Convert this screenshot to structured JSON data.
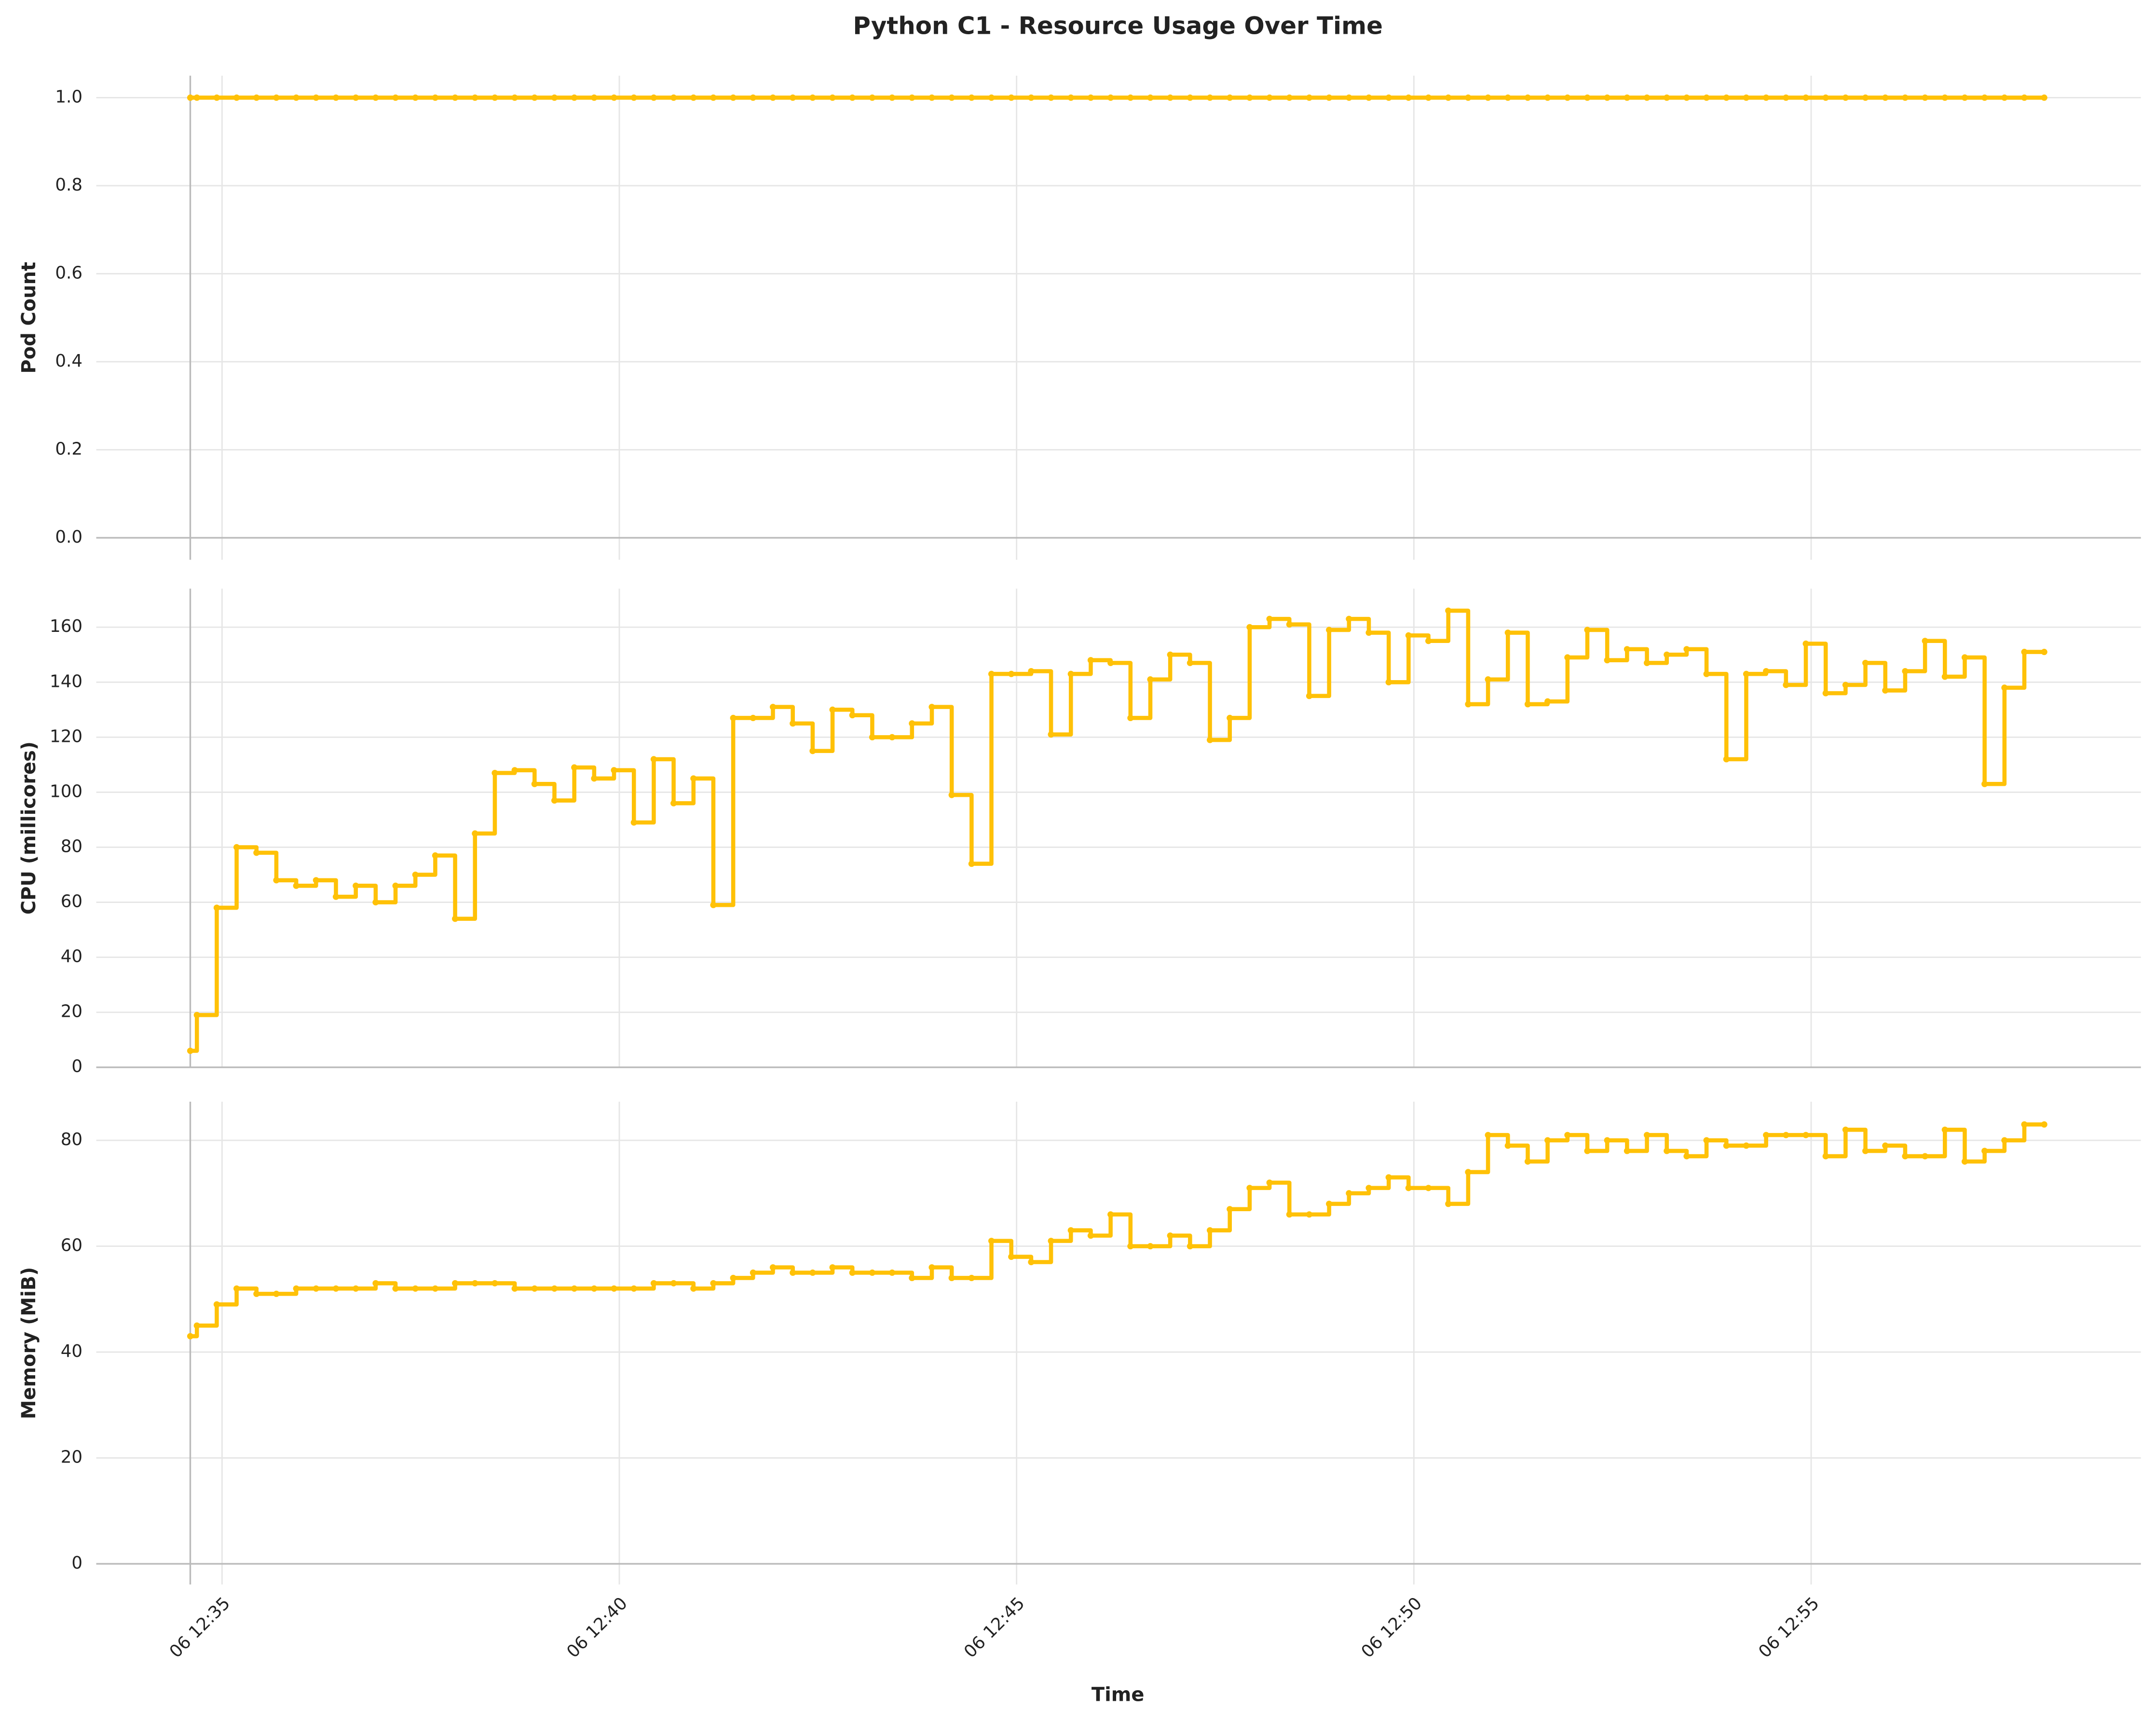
{
  "title": "Python C1 - Resource Usage Over Time",
  "x_label": "Time",
  "x": [
    "06 12:34:36",
    "06 12:34:41",
    "06 12:34:56",
    "06 12:35:11",
    "06 12:35:26",
    "06 12:35:41",
    "06 12:35:56",
    "06 12:36:11",
    "06 12:36:26",
    "06 12:36:41",
    "06 12:36:56",
    "06 12:37:11",
    "06 12:37:26",
    "06 12:37:41",
    "06 12:37:56",
    "06 12:38:11",
    "06 12:38:26",
    "06 12:38:41",
    "06 12:38:56",
    "06 12:39:11",
    "06 12:39:26",
    "06 12:39:41",
    "06 12:39:56",
    "06 12:40:11",
    "06 12:40:26",
    "06 12:40:41",
    "06 12:40:56",
    "06 12:41:11",
    "06 12:41:26",
    "06 12:41:41",
    "06 12:41:56",
    "06 12:42:11",
    "06 12:42:26",
    "06 12:42:41",
    "06 12:42:56",
    "06 12:43:11",
    "06 12:43:26",
    "06 12:43:41",
    "06 12:43:56",
    "06 12:44:11",
    "06 12:44:26",
    "06 12:44:41",
    "06 12:44:56",
    "06 12:45:11",
    "06 12:45:26",
    "06 12:45:41",
    "06 12:45:56",
    "06 12:46:11",
    "06 12:46:26",
    "06 12:46:41",
    "06 12:46:56",
    "06 12:47:11",
    "06 12:47:26",
    "06 12:47:41",
    "06 12:47:56",
    "06 12:48:11",
    "06 12:48:26",
    "06 12:48:41",
    "06 12:48:56",
    "06 12:49:11",
    "06 12:49:26",
    "06 12:49:41",
    "06 12:49:56",
    "06 12:50:11",
    "06 12:50:26",
    "06 12:50:41",
    "06 12:50:56",
    "06 12:51:11",
    "06 12:51:26",
    "06 12:51:41",
    "06 12:51:56",
    "06 12:52:11",
    "06 12:52:26",
    "06 12:52:41",
    "06 12:52:56",
    "06 12:53:11",
    "06 12:53:26",
    "06 12:53:41",
    "06 12:53:56",
    "06 12:54:11",
    "06 12:54:26",
    "06 12:54:41",
    "06 12:54:56",
    "06 12:55:11",
    "06 12:55:26",
    "06 12:55:41",
    "06 12:55:56",
    "06 12:56:11",
    "06 12:56:26",
    "06 12:56:41",
    "06 12:56:56",
    "06 12:57:11",
    "06 12:57:26",
    "06 12:57:41",
    "06 12:57:56"
  ],
  "xlim": [
    "06 12:33:25",
    "06 12:59:09"
  ],
  "xticks": [
    {
      "value": "06 12:35:00",
      "label": "06 12:35"
    },
    {
      "value": "06 12:40:00",
      "label": "06 12:40"
    },
    {
      "value": "06 12:45:00",
      "label": "06 12:45"
    },
    {
      "value": "06 12:50:00",
      "label": "06 12:50"
    },
    {
      "value": "06 12:55:00",
      "label": "06 12:55"
    }
  ],
  "chart_data": [
    {
      "type": "line",
      "y_label": "Pod Count",
      "ylim": [
        -0.05,
        1.05
      ],
      "grid": true,
      "yticks": [
        {
          "value": 0,
          "label": "0.0"
        },
        {
          "value": 0.2,
          "label": "0.2"
        },
        {
          "value": 0.4,
          "label": "0.4"
        },
        {
          "value": 0.6,
          "label": "0.6"
        },
        {
          "value": 0.8,
          "label": "0.8"
        },
        {
          "value": 1,
          "label": "1.0"
        }
      ],
      "series": [
        {
          "color": "#FFC107",
          "values": [
            1,
            1,
            1,
            1,
            1,
            1,
            1,
            1,
            1,
            1,
            1,
            1,
            1,
            1,
            1,
            1,
            1,
            1,
            1,
            1,
            1,
            1,
            1,
            1,
            1,
            1,
            1,
            1,
            1,
            1,
            1,
            1,
            1,
            1,
            1,
            1,
            1,
            1,
            1,
            1,
            1,
            1,
            1,
            1,
            1,
            1,
            1,
            1,
            1,
            1,
            1,
            1,
            1,
            1,
            1,
            1,
            1,
            1,
            1,
            1,
            1,
            1,
            1,
            1,
            1,
            1,
            1,
            1,
            1,
            1,
            1,
            1,
            1,
            1,
            1,
            1,
            1,
            1,
            1,
            1,
            1,
            1,
            1,
            1,
            1,
            1,
            1,
            1,
            1,
            1,
            1,
            1,
            1,
            1,
            1
          ]
        }
      ]
    },
    {
      "type": "line",
      "y_label": "CPU (millicores)",
      "ylim": [
        0,
        174
      ],
      "grid": true,
      "yticks": [
        0,
        20,
        40,
        60,
        80,
        100,
        120,
        140,
        160
      ],
      "series": [
        {
          "color": "#FFC107",
          "values": [
            6,
            19,
            58,
            80,
            78,
            68,
            66,
            68,
            62,
            66,
            60,
            66,
            70,
            77,
            54,
            85,
            107,
            108,
            103,
            97,
            109,
            105,
            108,
            89,
            112,
            96,
            105,
            59,
            127,
            127,
            131,
            125,
            115,
            130,
            128,
            120,
            120,
            125,
            131,
            99,
            74,
            143,
            143,
            144,
            121,
            143,
            148,
            147,
            127,
            141,
            150,
            147,
            119,
            127,
            160,
            163,
            161,
            135,
            159,
            163,
            158,
            140,
            157,
            155,
            166,
            132,
            141,
            158,
            132,
            133,
            149,
            159,
            148,
            152,
            147,
            150,
            152,
            143,
            112,
            143,
            144,
            139,
            154,
            136,
            139,
            147,
            137,
            144,
            155,
            142,
            149,
            103,
            138,
            151,
            151
          ]
        }
      ]
    },
    {
      "type": "line",
      "y_label": "Memory (MiB)",
      "ylim": [
        -3.9,
        87.3
      ],
      "grid": true,
      "yticks": [
        0,
        20,
        40,
        60,
        80
      ],
      "series": [
        {
          "color": "#FFC107",
          "values": [
            43,
            45,
            49,
            52,
            51,
            51,
            52,
            52,
            52,
            52,
            53,
            52,
            52,
            52,
            53,
            53,
            53,
            52,
            52,
            52,
            52,
            52,
            52,
            52,
            53,
            53,
            52,
            53,
            54,
            55,
            56,
            55,
            55,
            56,
            55,
            55,
            55,
            54,
            56,
            54,
            54,
            61,
            58,
            57,
            61,
            63,
            62,
            66,
            60,
            60,
            62,
            60,
            63,
            67,
            71,
            72,
            66,
            66,
            68,
            70,
            71,
            73,
            71,
            71,
            68,
            74,
            81,
            79,
            76,
            80,
            81,
            78,
            80,
            78,
            81,
            78,
            77,
            80,
            79,
            79,
            81,
            81,
            81,
            77,
            82,
            78,
            79,
            77,
            77,
            82,
            76,
            78,
            80,
            83,
            83
          ]
        }
      ]
    }
  ]
}
